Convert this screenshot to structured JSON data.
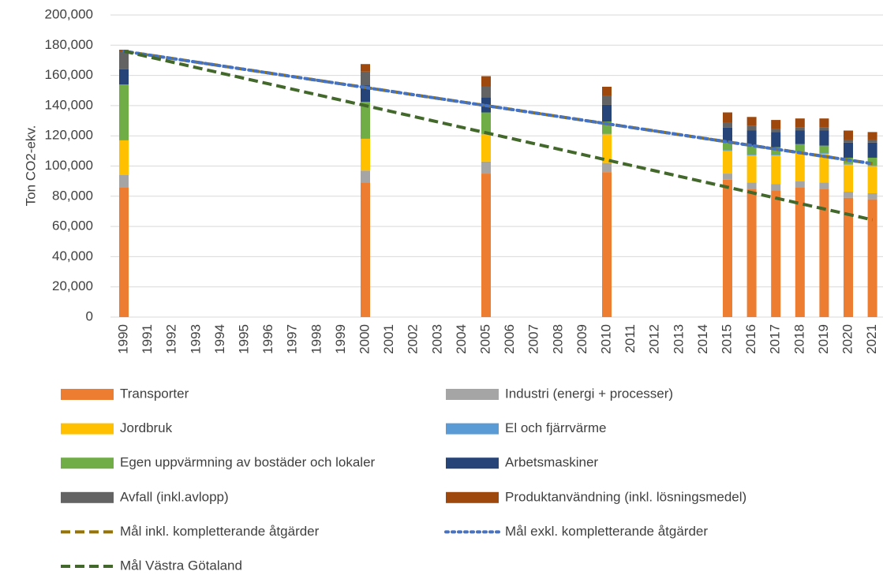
{
  "chart_data": {
    "type": "bar",
    "stacked": true,
    "y_label": "Ton CO2-ekv.",
    "categories": [
      "1990",
      "1991",
      "1992",
      "1993",
      "1994",
      "1995",
      "1996",
      "1997",
      "1998",
      "1999",
      "2000",
      "2001",
      "2002",
      "2003",
      "2004",
      "2005",
      "2006",
      "2007",
      "2008",
      "2009",
      "2010",
      "2011",
      "2012",
      "2013",
      "2014",
      "2015",
      "2016",
      "2017",
      "2018",
      "2019",
      "2020",
      "2021"
    ],
    "ylim": [
      0,
      200000
    ],
    "yticks": [
      0,
      {
        "value": 20000,
        "label": "20,000"
      },
      {
        "value": 40000,
        "label": "40,000"
      },
      {
        "value": 60000,
        "label": "60,000"
      },
      {
        "value": 80000,
        "label": "80,000"
      },
      {
        "value": 100000,
        "label": "100,000"
      },
      {
        "value": 120000,
        "label": "120,000"
      },
      {
        "value": 140000,
        "label": "140,000"
      },
      {
        "value": 160000,
        "label": "160,000"
      },
      {
        "value": 180000,
        "label": "180,000"
      },
      {
        "value": 200000,
        "label": "200,000"
      }
    ],
    "grid": true,
    "series": [
      {
        "name": "Transporter",
        "color": "#ed7d31",
        "values": [
          86000,
          null,
          null,
          null,
          null,
          null,
          null,
          null,
          null,
          null,
          89000,
          null,
          null,
          null,
          null,
          95000,
          null,
          null,
          null,
          null,
          96000,
          null,
          null,
          null,
          null,
          91000,
          85000,
          84000,
          86000,
          85000,
          79000,
          78000
        ]
      },
      {
        "name": "Industri (energi + processer)",
        "color": "#a5a5a5",
        "values": [
          8000,
          null,
          null,
          null,
          null,
          null,
          null,
          null,
          null,
          null,
          8000,
          null,
          null,
          null,
          null,
          8000,
          null,
          null,
          null,
          null,
          6000,
          null,
          null,
          null,
          null,
          4000,
          4000,
          4000,
          4000,
          4000,
          4000,
          4000
        ]
      },
      {
        "name": "Jordbruk",
        "color": "#ffc000",
        "values": [
          23000,
          null,
          null,
          null,
          null,
          null,
          null,
          null,
          null,
          null,
          21000,
          null,
          null,
          null,
          null,
          18000,
          null,
          null,
          null,
          null,
          19000,
          null,
          null,
          null,
          null,
          15000,
          18000,
          19000,
          19000,
          19000,
          18000,
          18000
        ]
      },
      {
        "name": "El och fjärrvärme",
        "color": "#5b9bd5",
        "values": [
          500,
          null,
          null,
          null,
          null,
          null,
          null,
          null,
          null,
          null,
          500,
          null,
          null,
          null,
          null,
          500,
          null,
          null,
          null,
          null,
          500,
          null,
          null,
          null,
          null,
          500,
          500,
          500,
          500,
          500,
          500,
          500
        ]
      },
      {
        "name": "Egen uppvärmning av bostäder och lokaler",
        "color": "#70ad47",
        "values": [
          36500,
          null,
          null,
          null,
          null,
          null,
          null,
          null,
          null,
          null,
          24000,
          null,
          null,
          null,
          null,
          14000,
          null,
          null,
          null,
          null,
          8000,
          null,
          null,
          null,
          null,
          5000,
          6000,
          5000,
          5000,
          5000,
          4000,
          5000
        ]
      },
      {
        "name": "Arbetsmaskiner",
        "color": "#264478",
        "values": [
          10000,
          null,
          null,
          null,
          null,
          null,
          null,
          null,
          null,
          null,
          11000,
          null,
          null,
          null,
          null,
          10000,
          null,
          null,
          null,
          null,
          11000,
          null,
          null,
          null,
          null,
          10000,
          10000,
          10000,
          9000,
          10000,
          10000,
          10000
        ]
      },
      {
        "name": "Avfall (inkl.avlopp)",
        "color": "#636363",
        "values": [
          12000,
          null,
          null,
          null,
          null,
          null,
          null,
          null,
          null,
          null,
          9000,
          null,
          null,
          null,
          null,
          7000,
          null,
          null,
          null,
          null,
          6000,
          null,
          null,
          null,
          null,
          3000,
          3000,
          2000,
          2000,
          2000,
          2000,
          2000
        ]
      },
      {
        "name": "Produktanvändning (inkl. lösningsmedel)",
        "color": "#9e480e",
        "values": [
          1000,
          null,
          null,
          null,
          null,
          null,
          null,
          null,
          null,
          null,
          5000,
          null,
          null,
          null,
          null,
          7000,
          null,
          null,
          null,
          null,
          6000,
          null,
          null,
          null,
          null,
          7000,
          6000,
          6000,
          6000,
          6000,
          6000,
          5000
        ]
      },
      {
        "name": "Mål inkl. kompletterande åtgärder",
        "color": "#997300",
        "type": "line",
        "style": "dash",
        "values": [
          176000,
          173600,
          171200,
          168800,
          166400,
          164000,
          161600,
          159200,
          156800,
          154400,
          152000,
          149600,
          147200,
          144800,
          142400,
          140000,
          137600,
          135200,
          132800,
          130400,
          128000,
          125600,
          123200,
          120800,
          118400,
          116000,
          113600,
          111200,
          108800,
          106400,
          104000,
          101600
        ]
      },
      {
        "name": "Mål exkl. kompletterande åtgärder",
        "color": "#4472c4",
        "type": "line",
        "style": "dot",
        "values": [
          176000,
          173600,
          171200,
          168800,
          166400,
          164000,
          161600,
          159200,
          156800,
          154400,
          152000,
          149600,
          147200,
          144800,
          142400,
          140000,
          137600,
          135200,
          132800,
          130400,
          128000,
          125600,
          123200,
          120800,
          118400,
          116000,
          113600,
          111200,
          108800,
          106400,
          104000,
          101600
        ]
      },
      {
        "name": "Mål Västra Götaland",
        "color": "#43682b",
        "type": "line",
        "style": "dash",
        "values": [
          176000,
          172400,
          168800,
          165200,
          161600,
          158000,
          154400,
          150800,
          147200,
          143600,
          140000,
          136400,
          132800,
          129200,
          125600,
          122000,
          118400,
          114800,
          111200,
          107600,
          104000,
          100400,
          96800,
          93200,
          89600,
          86000,
          82400,
          78800,
          75200,
          71600,
          68000,
          64400
        ]
      }
    ]
  }
}
